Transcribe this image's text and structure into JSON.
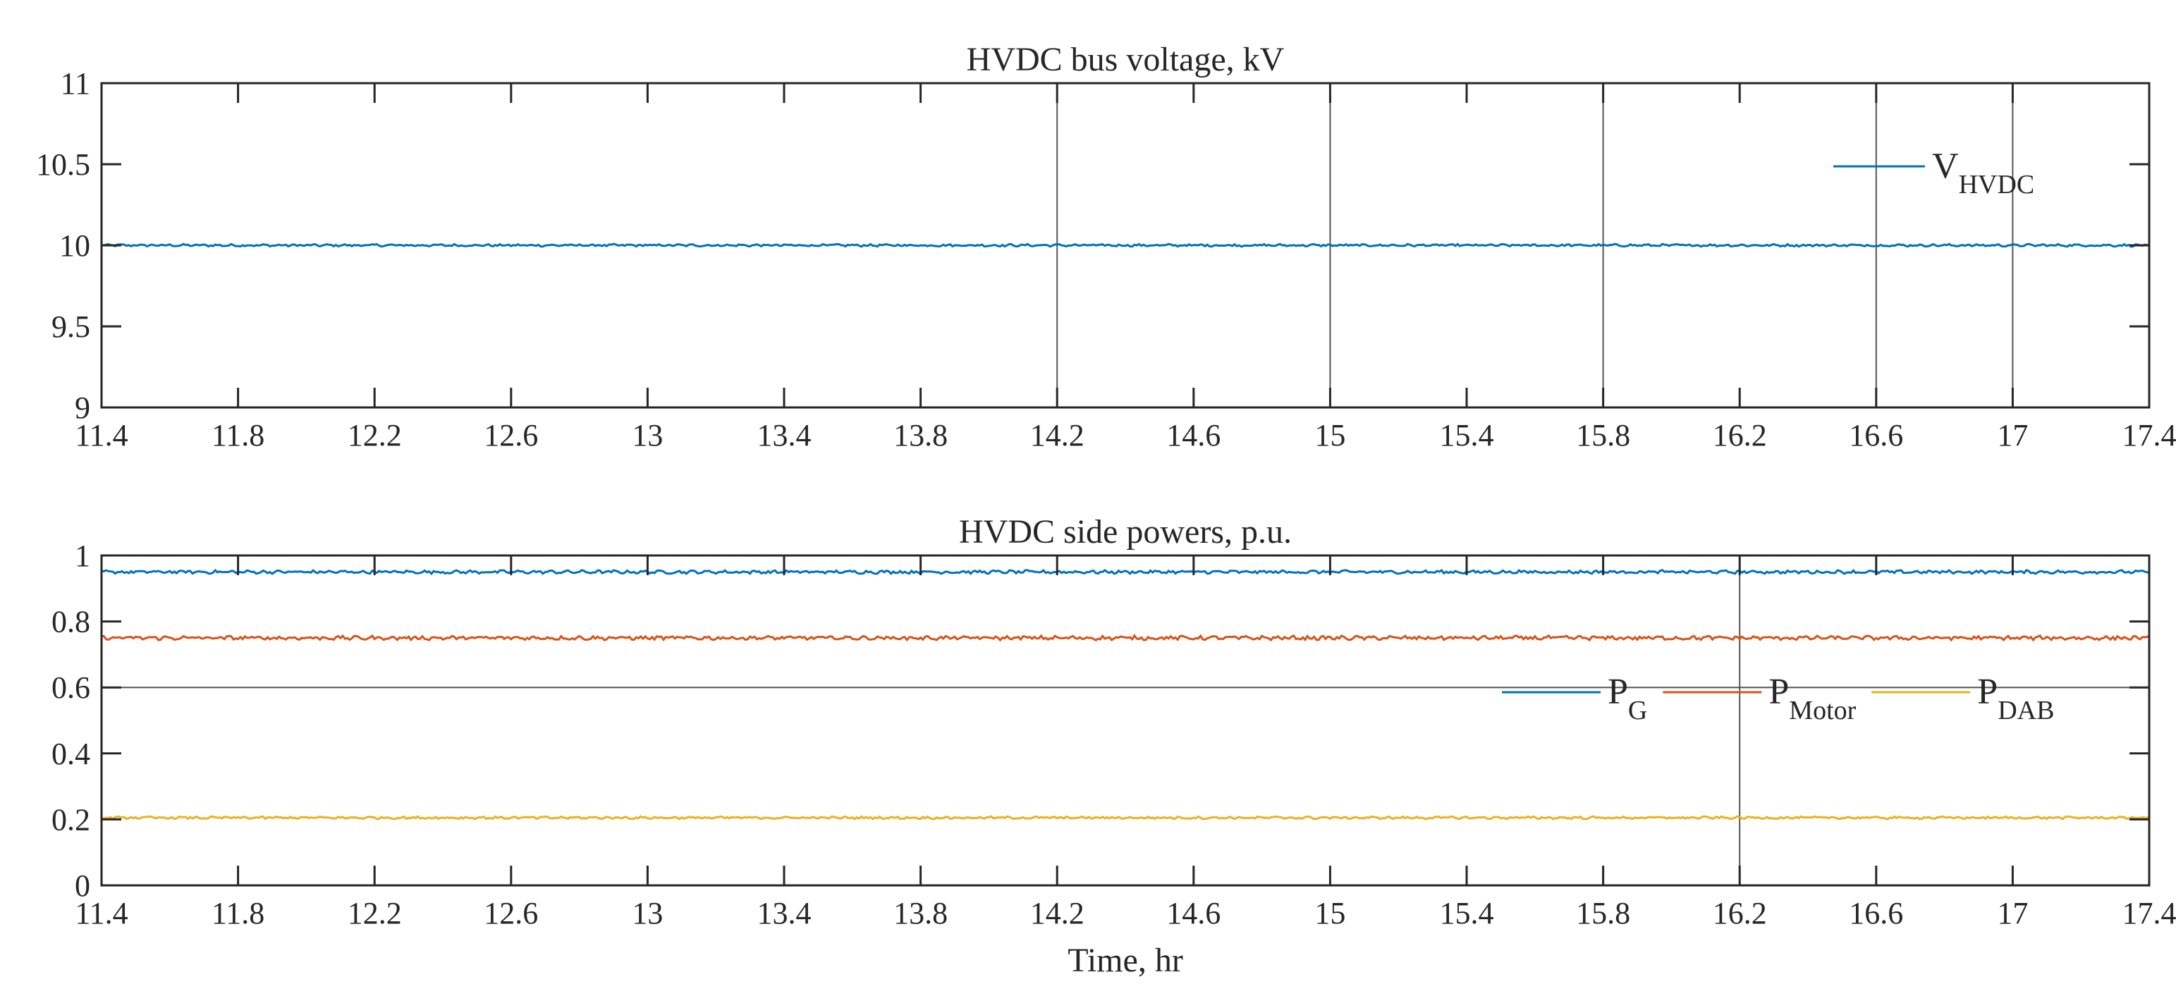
{
  "chart_data": [
    {
      "type": "line",
      "title": "HVDC bus voltage, kV",
      "xlabel": "",
      "ylabel": "",
      "xlim": [
        11.4,
        17.4
      ],
      "ylim": [
        9,
        11
      ],
      "x_ticks": [
        "11.4",
        "11.8",
        "12.2",
        "12.6",
        "13",
        "13.4",
        "13.8",
        "14.2",
        "14.6",
        "15",
        "15.4",
        "15.8",
        "16.2",
        "16.6",
        "17",
        "17.4"
      ],
      "y_ticks": [
        "9",
        "9.5",
        "10",
        "10.5",
        "11"
      ],
      "series": [
        {
          "name": "V",
          "sub": "HVDC",
          "color": "#0072BD",
          "level": 10.0,
          "ripple": 0.006
        }
      ],
      "vertical_markers": [
        14.2,
        15.0,
        15.8,
        16.6,
        17.0
      ],
      "legend": "top-right"
    },
    {
      "type": "line",
      "title": "HVDC side powers, p.u.",
      "xlabel": "Time, hr",
      "ylabel": "",
      "xlim": [
        11.4,
        17.4
      ],
      "ylim": [
        0,
        1
      ],
      "x_ticks": [
        "11.4",
        "11.8",
        "12.2",
        "12.6",
        "13",
        "13.4",
        "13.8",
        "14.2",
        "14.6",
        "15",
        "15.4",
        "15.8",
        "16.2",
        "16.6",
        "17",
        "17.4"
      ],
      "y_ticks": [
        "0",
        "0.2",
        "0.4",
        "0.6",
        "0.8",
        "1"
      ],
      "series": [
        {
          "name": "P",
          "sub": "G",
          "color": "#0072BD",
          "level": 0.95,
          "ripple": 0.004
        },
        {
          "name": "P",
          "sub": "Motor",
          "color": "#D95319",
          "level": 0.75,
          "ripple": 0.005
        },
        {
          "name": "P",
          "sub": "DAB",
          "color": "#EDB120",
          "level": 0.205,
          "ripple": 0.003
        }
      ],
      "horizontal_markers": [
        0.6
      ],
      "vertical_markers": [
        16.2
      ],
      "legend": "center-right"
    }
  ]
}
